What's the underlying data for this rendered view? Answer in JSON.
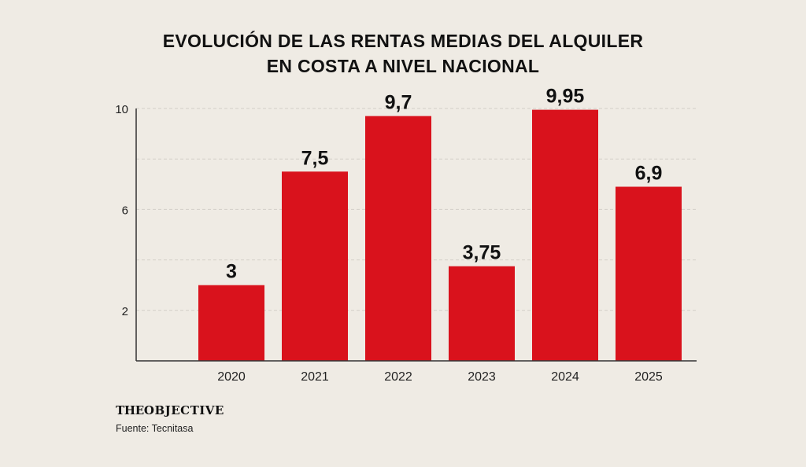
{
  "title_lines": [
    "EVOLUCIÓN DE LAS RENTAS MEDIAS DEL ALQUILER",
    "EN COSTA A NIVEL NACIONAL"
  ],
  "brand": {
    "part1": "THE",
    "part2": "OBJECTIVE"
  },
  "source": "Fuente: Tecnitasa",
  "colors": {
    "bar": "#d9121c",
    "background": "#efebe4",
    "grid": "#d3cfc8",
    "axis": "#333333",
    "text": "#111111"
  },
  "chart_data": {
    "type": "bar",
    "title": "EVOLUCIÓN DE LAS RENTAS MEDIAS DEL ALQUILER EN COSTA A NIVEL NACIONAL",
    "categories": [
      "2020",
      "2021",
      "2022",
      "2023",
      "2024",
      "2025"
    ],
    "values": [
      3,
      7.5,
      9.7,
      3.75,
      9.95,
      6.9
    ],
    "value_labels": [
      "3",
      "7,5",
      "9,7",
      "3,75",
      "9,95",
      "6,9"
    ],
    "xlabel": "",
    "ylabel": "",
    "ylim": [
      0,
      10
    ],
    "y_ticks": [
      2,
      6,
      10
    ],
    "grid": true,
    "grid_style": "dashed horizontal",
    "legend": "none"
  }
}
